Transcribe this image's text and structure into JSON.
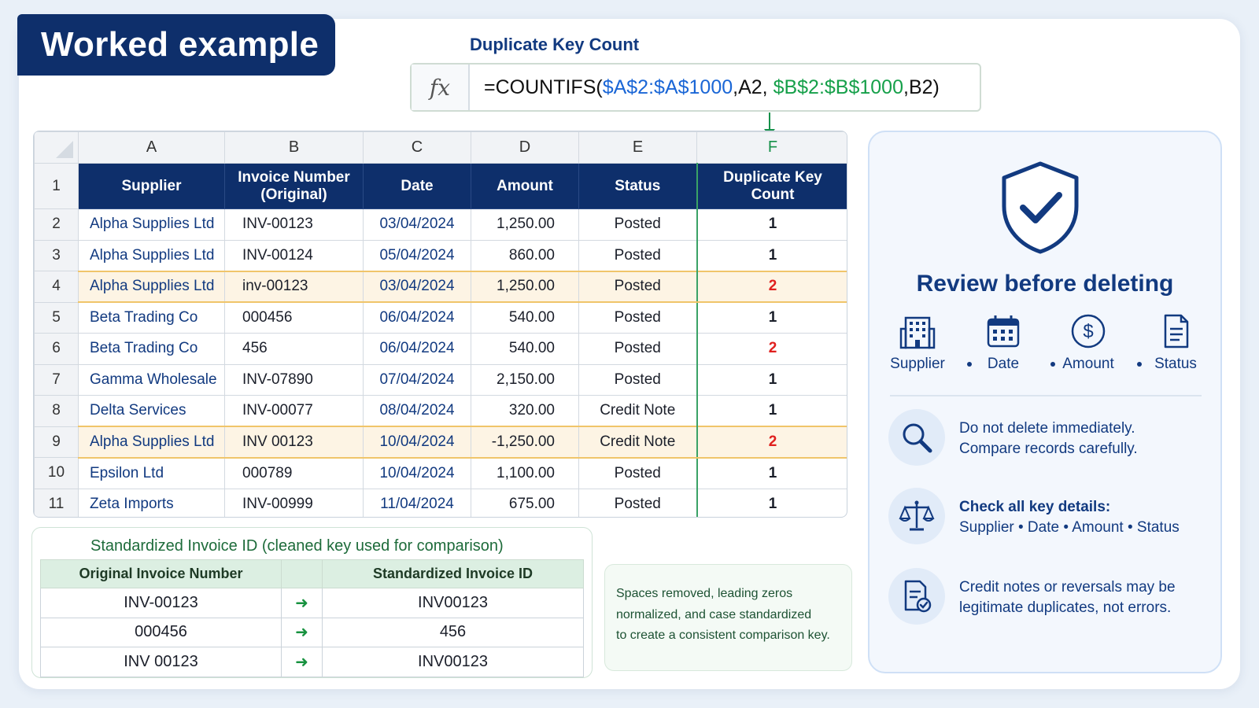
{
  "title": "Worked example",
  "formula": {
    "label": "Duplicate Key Count",
    "fx": "fx",
    "part1": "=COUNTIFS(",
    "range1": "$A$2:$A$1000",
    "part2": ",A2, ",
    "range2": "$B$2:$B$1000",
    "part3": ",B2)"
  },
  "sheet": {
    "columns": [
      "A",
      "B",
      "C",
      "D",
      "E",
      "F"
    ],
    "header_row_number": "1",
    "headers": {
      "supplier": "Supplier",
      "invoice_l1": "Invoice Number",
      "invoice_l2": "(Original)",
      "date": "Date",
      "amount": "Amount",
      "status": "Status",
      "dup_l1": "Duplicate Key",
      "dup_l2": "Count"
    },
    "rows": [
      {
        "n": "2",
        "supplier": "Alpha Supplies Ltd",
        "invoice": "INV-00123",
        "date": "03/04/2024",
        "amount": "1,250.00",
        "status": "Posted",
        "count": "1"
      },
      {
        "n": "3",
        "supplier": "Alpha Supplies Ltd",
        "invoice": "INV-00124",
        "date": "05/04/2024",
        "amount": "860.00",
        "status": "Posted",
        "count": "1"
      },
      {
        "n": "4",
        "supplier": "Alpha Supplies Ltd",
        "invoice": "inv-00123",
        "date": "03/04/2024",
        "amount": "1,250.00",
        "status": "Posted",
        "count": "2"
      },
      {
        "n": "5",
        "supplier": "Beta Trading Co",
        "invoice": "000456",
        "date": "06/04/2024",
        "amount": "540.00",
        "status": "Posted",
        "count": "1"
      },
      {
        "n": "6",
        "supplier": "Beta Trading Co",
        "invoice": "456",
        "date": "06/04/2024",
        "amount": "540.00",
        "status": "Posted",
        "count": "2"
      },
      {
        "n": "7",
        "supplier": "Gamma Wholesale",
        "invoice": "INV-07890",
        "date": "07/04/2024",
        "amount": "2,150.00",
        "status": "Posted",
        "count": "1"
      },
      {
        "n": "8",
        "supplier": "Delta Services",
        "invoice": "INV-00077",
        "date": "08/04/2024",
        "amount": "320.00",
        "status": "Credit Note",
        "count": "1"
      },
      {
        "n": "9",
        "supplier": "Alpha Supplies Ltd",
        "invoice": "INV 00123",
        "date": "10/04/2024",
        "amount": "-1,250.00",
        "status": "Credit Note",
        "count": "2"
      },
      {
        "n": "10",
        "supplier": "Epsilon Ltd",
        "invoice": "000789",
        "date": "10/04/2024",
        "amount": "1,100.00",
        "status": "Posted",
        "count": "1"
      },
      {
        "n": "11",
        "supplier": "Zeta Imports",
        "invoice": "INV-00999",
        "date": "11/04/2024",
        "amount": "675.00",
        "status": "Posted",
        "count": "1"
      }
    ]
  },
  "standardized": {
    "title": "Standardized Invoice ID (cleaned key used for comparison)",
    "col_original": "Original Invoice Number",
    "col_standardized": "Standardized Invoice ID",
    "arrow": "➜",
    "rows": [
      {
        "original": "INV-00123",
        "standardized": "INV00123"
      },
      {
        "original": "000456",
        "standardized": "456"
      },
      {
        "original": "INV 00123",
        "standardized": "INV00123"
      }
    ]
  },
  "note": {
    "line1": "Spaces removed, leading zeros",
    "line2": "normalized, and case standardized",
    "line3": "to create a consistent comparison key."
  },
  "review": {
    "title": "Review before deleting",
    "icons": [
      {
        "label": "Supplier",
        "icon": "building-icon"
      },
      {
        "label": "Date",
        "icon": "calendar-icon"
      },
      {
        "label": "Amount",
        "icon": "dollar-icon"
      },
      {
        "label": "Status",
        "icon": "document-icon"
      }
    ],
    "tips": [
      {
        "icon": "magnifier-icon",
        "line1": "Do not delete immediately.",
        "line2": "Compare records carefully."
      },
      {
        "icon": "scales-icon",
        "line1": "Check all key details:",
        "line2": "Supplier • Date • Amount • Status"
      },
      {
        "icon": "document-check-icon",
        "line1": "Credit notes or reversals may be",
        "line2": "legitimate duplicates, not errors."
      }
    ]
  },
  "colors": {
    "navy": "#0e2f6b",
    "accent_blue": "#1a66d6",
    "accent_green": "#16a04a",
    "duplicate_red": "#e0201e",
    "highlight_row": "#fdf4e4"
  }
}
